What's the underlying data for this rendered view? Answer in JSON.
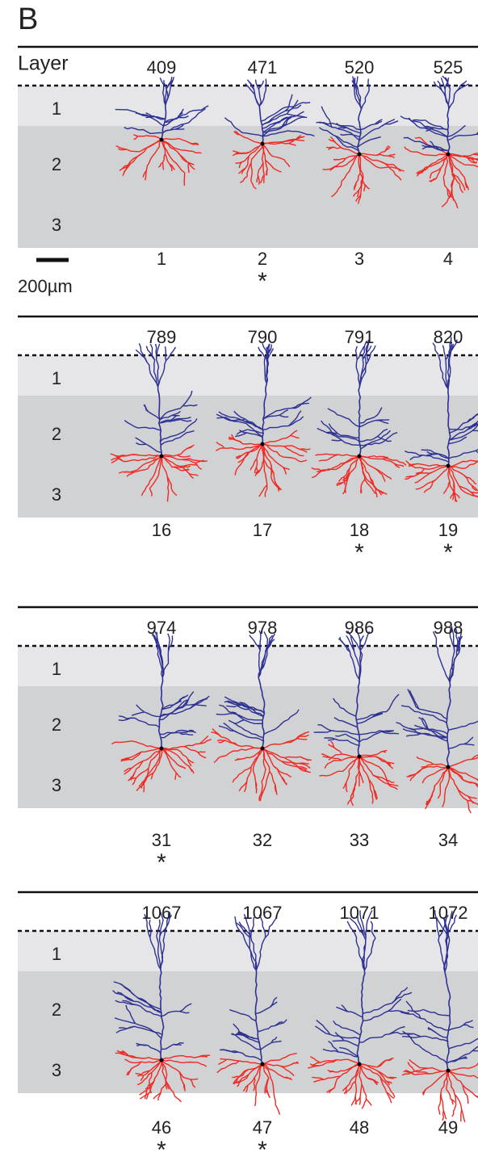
{
  "panel_label": "B",
  "layer_header": "Layer",
  "layers": [
    "1",
    "2",
    "3"
  ],
  "scale_bar_label": "200µm",
  "rows": [
    {
      "neurons": [
        {
          "depth": "409",
          "id": "1"
        },
        {
          "depth": "471",
          "id": "2",
          "marker": "*"
        },
        {
          "depth": "520",
          "id": "3"
        },
        {
          "depth": "525",
          "id": "4"
        }
      ]
    },
    {
      "neurons": [
        {
          "depth": "789",
          "id": "16"
        },
        {
          "depth": "790",
          "id": "17"
        },
        {
          "depth": "791",
          "id": "18",
          "marker": "*"
        },
        {
          "depth": "820",
          "id": "19",
          "marker": "*"
        }
      ]
    },
    {
      "neurons": [
        {
          "depth": "974",
          "id": "31",
          "marker": "*"
        },
        {
          "depth": "978",
          "id": "32"
        },
        {
          "depth": "986",
          "id": "33"
        },
        {
          "depth": "988",
          "id": "34"
        }
      ]
    },
    {
      "neurons": [
        {
          "depth": "1067",
          "id": "46",
          "marker": "*"
        },
        {
          "depth": "1067",
          "id": "47",
          "marker": "*"
        },
        {
          "depth": "1071",
          "id": "48"
        },
        {
          "depth": "1072",
          "id": "49"
        }
      ]
    }
  ]
}
